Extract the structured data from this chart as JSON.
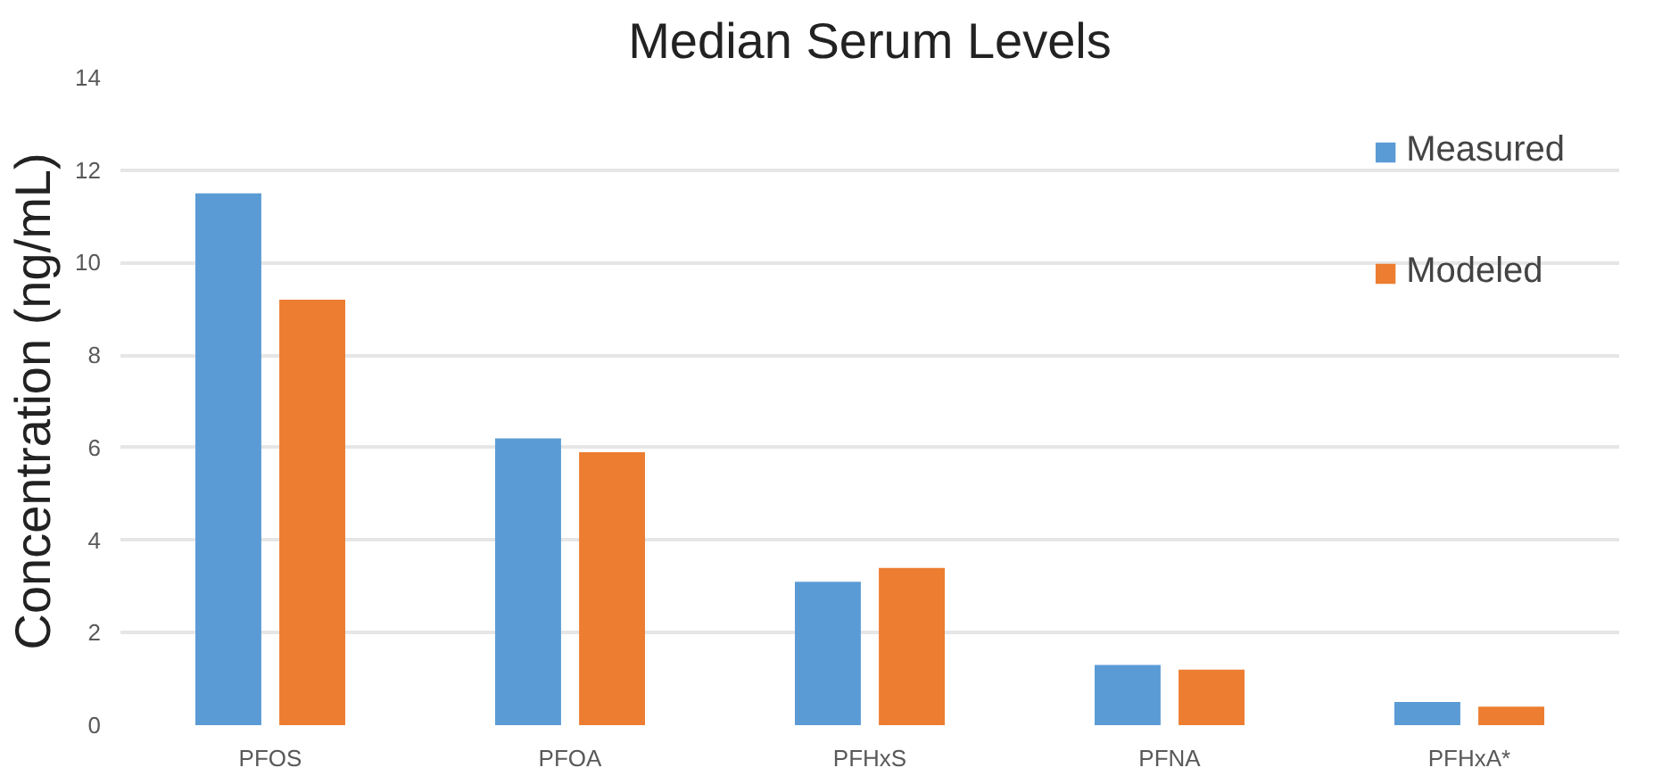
{
  "chart_data": {
    "type": "bar",
    "title": "Median Serum Levels",
    "ylabel": "Concentration (ng/mL)",
    "categories": [
      "PFOS",
      "PFOA",
      "PFHxS",
      "PFNA",
      "PFHxA*"
    ],
    "series": [
      {
        "name": "Measured",
        "color": "#5b9bd5",
        "values": [
          11.5,
          6.2,
          3.1,
          1.3,
          0.5
        ]
      },
      {
        "name": "Modeled",
        "color": "#ed7d31",
        "values": [
          9.2,
          5.9,
          3.4,
          1.2,
          0.4
        ]
      }
    ],
    "ylim": [
      0,
      14
    ],
    "yticks": [
      0,
      2,
      4,
      6,
      8,
      10,
      12,
      14
    ],
    "grid": "y",
    "legend": "top right"
  }
}
